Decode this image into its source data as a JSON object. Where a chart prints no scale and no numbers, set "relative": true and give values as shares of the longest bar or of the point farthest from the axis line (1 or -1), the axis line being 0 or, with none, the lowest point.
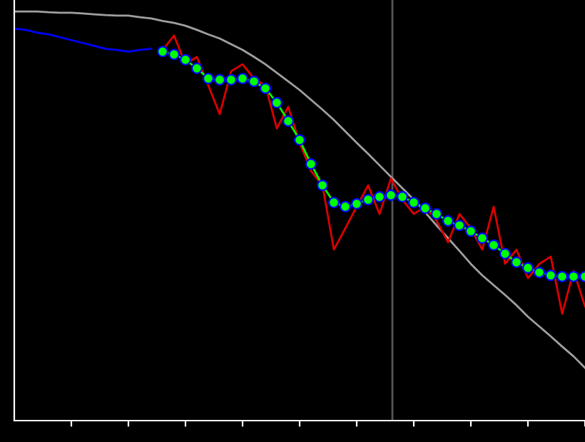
{
  "chart_data": {
    "type": "line",
    "relative": true,
    "tick_labels": false,
    "grid": false,
    "legend": false,
    "categories": [
      null,
      null,
      null,
      null,
      null,
      null,
      null,
      null,
      null,
      null,
      null,
      null,
      null,
      null,
      null,
      null,
      null,
      null,
      null,
      null,
      null,
      null,
      null,
      null,
      null,
      null,
      null,
      null,
      null,
      null,
      null,
      null,
      null,
      null,
      null,
      null,
      null,
      null,
      null,
      null,
      null,
      null,
      null,
      null,
      null,
      null,
      null,
      null,
      null,
      null,
      null
    ],
    "series": [
      {
        "color": "#a0a0a0",
        "values": [
          1.0,
          1.0,
          1.0,
          0.998,
          0.997,
          0.997,
          0.995,
          0.993,
          0.991,
          0.99,
          0.99,
          0.986,
          0.983,
          0.977,
          0.972,
          0.965,
          0.955,
          0.944,
          0.934,
          0.92,
          0.906,
          0.889,
          0.871,
          0.85,
          0.829,
          0.808,
          0.784,
          0.76,
          0.735,
          0.707,
          0.679,
          0.652,
          0.624,
          0.596,
          0.568,
          0.54,
          0.509,
          0.477,
          0.446,
          0.415,
          0.383,
          0.355,
          0.331,
          0.307,
          0.282,
          0.254,
          0.23,
          0.206,
          0.181,
          0.157,
          0.129
        ]
      },
      {
        "color": "#0000ff",
        "values": [
          0.958,
          0.955,
          0.948,
          0.944,
          0.937,
          0.93,
          0.923,
          0.916,
          0.909,
          0.906,
          0.902,
          0.906,
          0.909,
          null,
          null,
          null,
          null,
          null,
          null,
          null,
          null,
          null,
          null,
          null,
          null,
          null,
          null,
          null,
          null,
          null,
          null,
          null,
          null,
          null,
          null,
          null,
          null,
          null,
          null,
          null,
          null,
          null,
          null,
          null,
          null,
          null,
          null,
          null,
          null,
          null,
          null
        ]
      },
      {
        "color": "#dd0000",
        "values": [
          null,
          null,
          null,
          null,
          null,
          null,
          null,
          null,
          null,
          null,
          null,
          null,
          null,
          0.906,
          0.941,
          0.871,
          0.889,
          0.819,
          0.749,
          0.854,
          0.871,
          0.836,
          0.819,
          0.714,
          0.767,
          0.679,
          0.61,
          0.575,
          0.418,
          0.47,
          0.523,
          0.575,
          0.505,
          0.592,
          0.54,
          0.505,
          0.523,
          0.488,
          0.436,
          0.505,
          0.47,
          0.418,
          0.523,
          0.383,
          0.418,
          0.348,
          0.383,
          0.401,
          0.261,
          0.366,
          0.279
        ]
      },
      {
        "color": "#00ff00",
        "marker": "circle",
        "values": [
          null,
          null,
          null,
          null,
          null,
          null,
          null,
          null,
          null,
          null,
          null,
          null,
          null,
          0.902,
          0.895,
          0.882,
          0.861,
          0.836,
          0.833,
          0.833,
          0.836,
          0.829,
          0.812,
          0.777,
          0.732,
          0.686,
          0.627,
          0.575,
          0.533,
          0.523,
          0.53,
          0.54,
          0.547,
          0.551,
          0.547,
          0.533,
          0.519,
          0.505,
          0.488,
          0.477,
          0.463,
          0.446,
          0.429,
          0.408,
          0.387,
          0.373,
          0.362,
          0.355,
          0.352,
          0.352,
          0.352
        ]
      }
    ]
  }
}
